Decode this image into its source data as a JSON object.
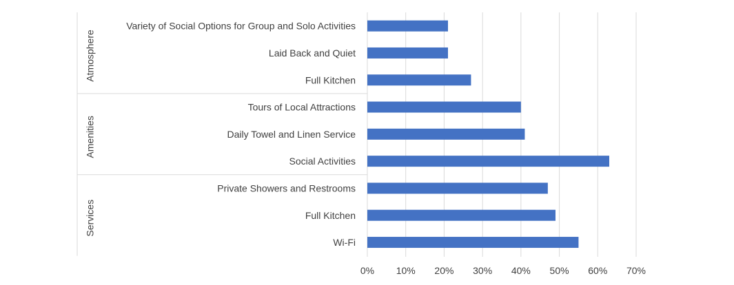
{
  "chart_data": {
    "type": "bar",
    "orientation": "horizontal",
    "bar_color": "#4472C4",
    "grid_color": "#D9D9D9",
    "text_color": "#404040",
    "grid": true,
    "legend": "none",
    "xlim": [
      0,
      0.7
    ],
    "x_ticks": [
      {
        "value": 0.0,
        "label": "0%"
      },
      {
        "value": 0.1,
        "label": "10%"
      },
      {
        "value": 0.2,
        "label": "20%"
      },
      {
        "value": 0.3,
        "label": "30%"
      },
      {
        "value": 0.4,
        "label": "40%"
      },
      {
        "value": 0.5,
        "label": "50%"
      },
      {
        "value": 0.6,
        "label": "60%"
      },
      {
        "value": 0.7,
        "label": "70%"
      }
    ],
    "groups": [
      {
        "name": "Atmosphere",
        "categories": [
          {
            "label": "Variety of  Social Options for Group and Solo Activities",
            "value": 0.21
          },
          {
            "label": "Laid Back and Quiet",
            "value": 0.21
          },
          {
            "label": "Full Kitchen",
            "value": 0.27
          }
        ]
      },
      {
        "name": "Amenities",
        "categories": [
          {
            "label": "Tours of Local Attractions",
            "value": 0.4
          },
          {
            "label": "Daily Towel and Linen Service",
            "value": 0.41
          },
          {
            "label": "Social Activities",
            "value": 0.63
          }
        ]
      },
      {
        "name": "Services",
        "categories": [
          {
            "label": "Private Showers and Restrooms",
            "value": 0.47
          },
          {
            "label": "Full Kitchen",
            "value": 0.49
          },
          {
            "label": "Wi-Fi",
            "value": 0.55
          }
        ]
      }
    ]
  }
}
